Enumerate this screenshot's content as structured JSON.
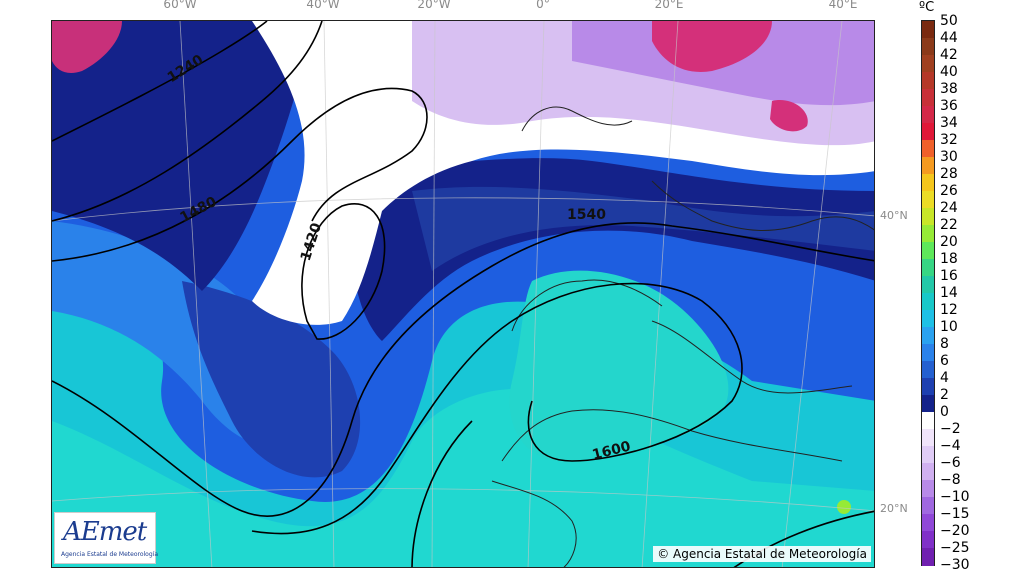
{
  "longitude_labels": [
    "60°W",
    "40°W",
    "20°W",
    "0°",
    "20°E",
    "40°E"
  ],
  "latitude_labels": [
    "40°N",
    "20°N"
  ],
  "contour_labels": [
    "1240",
    "1480",
    "1420",
    "1540",
    "1600"
  ],
  "logo": {
    "text": "AEmet",
    "subtitle": "Agencia Estatal de Meteorología"
  },
  "copyright": "© Agencia Estatal de Meteorología",
  "colorbar": {
    "unit": "ºC",
    "ticks": [
      "50",
      "44",
      "42",
      "40",
      "38",
      "36",
      "34",
      "32",
      "30",
      "28",
      "26",
      "24",
      "22",
      "20",
      "18",
      "16",
      "14",
      "12",
      "10",
      "8",
      "6",
      "4",
      "2",
      "0",
      "−2",
      "−4",
      "−6",
      "−8",
      "−10",
      "−15",
      "−20",
      "−25",
      "−30"
    ],
    "colors": [
      "#7a2a10",
      "#8b3a1a",
      "#a04020",
      "#b53828",
      "#c83038",
      "#d42848",
      "#e01838",
      "#f0602a",
      "#f59a20",
      "#f5c61c",
      "#ecdc26",
      "#c8e628",
      "#96ea36",
      "#5ee85a",
      "#36d684",
      "#22c8a8",
      "#18c8c8",
      "#1ec0e6",
      "#2aa2f0",
      "#2a82ea",
      "#2460d0",
      "#1e40b0",
      "#14228a",
      "#ffffff",
      "#f0e4fa",
      "#e0ccf6",
      "#d0b0f0",
      "#b88ae8",
      "#a068e0",
      "#9048d8",
      "#8030c8",
      "#7020b0"
    ],
    "accent": "#1b3c8f"
  }
}
